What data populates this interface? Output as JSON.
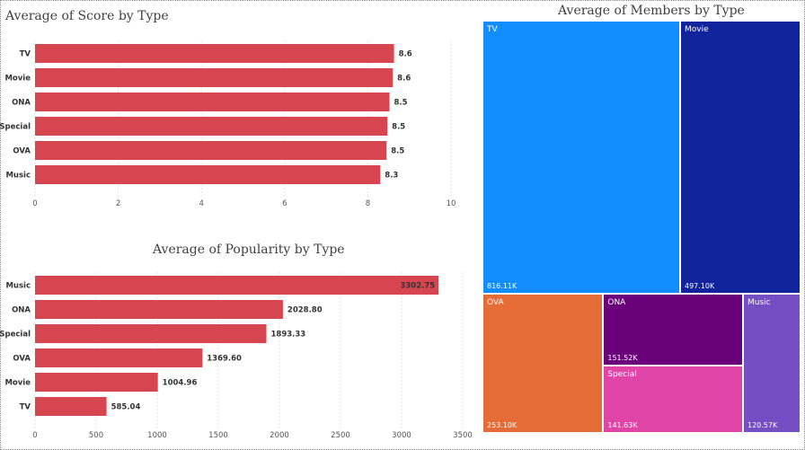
{
  "chart_data": [
    {
      "type": "bar",
      "orientation": "horizontal",
      "title": "Average of Score by Type",
      "categories": [
        "TV",
        "Movie",
        "ONA",
        "Special",
        "OVA",
        "Music"
      ],
      "values": [
        8.63,
        8.6,
        8.52,
        8.47,
        8.45,
        8.3
      ],
      "value_labels": [
        "8.6",
        "8.6",
        "8.5",
        "8.5",
        "8.5",
        "8.3"
      ],
      "xlim": [
        0,
        10
      ],
      "ticks": [
        0,
        2,
        4,
        6,
        8,
        10
      ],
      "tick_labels": [
        "0",
        "2",
        "4",
        "6",
        "8",
        "10"
      ],
      "color": "#d64550"
    },
    {
      "type": "bar",
      "orientation": "horizontal",
      "title": "Average of Popularity by Type",
      "categories": [
        "Music",
        "ONA",
        "Special",
        "OVA",
        "Movie",
        "TV"
      ],
      "values": [
        3302.75,
        2028.8,
        1893.33,
        1369.6,
        1004.96,
        585.04
      ],
      "value_labels": [
        "3302.75",
        "2028.80",
        "1893.33",
        "1369.60",
        "1004.96",
        "585.04"
      ],
      "xlim": [
        0,
        3500
      ],
      "ticks": [
        0,
        500,
        1000,
        1500,
        2000,
        2500,
        3000,
        3500
      ],
      "tick_labels": [
        "0",
        "500",
        "1000",
        "1500",
        "2000",
        "2500",
        "3000",
        "3500"
      ],
      "color": "#d64550"
    },
    {
      "type": "treemap",
      "title": "Average of Members by Type",
      "categories": [
        "TV",
        "Movie",
        "OVA",
        "ONA",
        "Special",
        "Music"
      ],
      "values": [
        816110,
        497100,
        253100,
        151520,
        141630,
        120570
      ],
      "value_labels": [
        "816.11K",
        "497.10K",
        "253.10K",
        "151.52K",
        "141.63K",
        "120.57K"
      ],
      "colors": [
        "#118dff",
        "#12239e",
        "#e66c37",
        "#6b007b",
        "#e044a7",
        "#744ec2"
      ]
    }
  ]
}
